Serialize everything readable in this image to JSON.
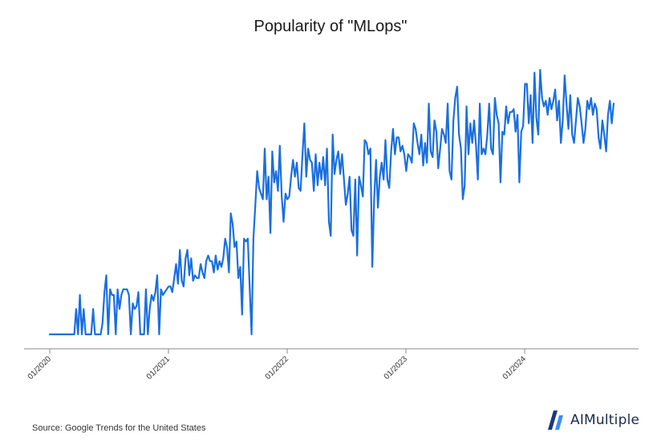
{
  "source_note": "Source: Google Trends for the United States",
  "brand": {
    "name": "AIMultiple",
    "logo_icon": "aimultiple-logo-icon"
  },
  "colors": {
    "line": "#1a6fe0",
    "axis": "#888888",
    "logo_dark": "#1b3a7a",
    "logo_light": "#3b8cf5"
  },
  "chart_data": {
    "type": "line",
    "title": "Popularity of \"MLops\"",
    "xlabel": "",
    "ylabel": "",
    "x_tick_labels": [
      "01/2020",
      "01/2021",
      "01/2022",
      "01/2023",
      "01/2024"
    ],
    "x_tick_positions": [
      0,
      1,
      2,
      3,
      4
    ],
    "x_range": [
      0,
      4.75
    ],
    "ylim": [
      0,
      100
    ],
    "grid": false,
    "series": [
      {
        "values": [
          0,
          0,
          0,
          0,
          0,
          0,
          0,
          0,
          0,
          0,
          0,
          0,
          0,
          0,
          9,
          0,
          14,
          0,
          9,
          0,
          0,
          0,
          0,
          9,
          0,
          0,
          0,
          0,
          4,
          15,
          21,
          0,
          16,
          14,
          14,
          0,
          16,
          9,
          14,
          16,
          16,
          16,
          14,
          0,
          11,
          9,
          10,
          15,
          0,
          0,
          0,
          16,
          0,
          9,
          14,
          12,
          15,
          21,
          0,
          16,
          14,
          15,
          16,
          17,
          17,
          15,
          20,
          25,
          18,
          30,
          19,
          17,
          27,
          30,
          21,
          27,
          19,
          21,
          20,
          20,
          25,
          22,
          20,
          26,
          28,
          26,
          26,
          22,
          28,
          23,
          26,
          24,
          27,
          34,
          31,
          22,
          43,
          39,
          31,
          33,
          20,
          24,
          7,
          34,
          33,
          34,
          17,
          0,
          34,
          46,
          58,
          52,
          50,
          48,
          66,
          48,
          56,
          36,
          65,
          54,
          58,
          51,
          67,
          49,
          40,
          50,
          48,
          49,
          56,
          62,
          56,
          61,
          52,
          51,
          64,
          75,
          56,
          66,
          62,
          61,
          51,
          64,
          53,
          61,
          55,
          63,
          53,
          66,
          40,
          35,
          71,
          57,
          62,
          65,
          57,
          64,
          55,
          46,
          50,
          56,
          37,
          35,
          55,
          28,
          56,
          53,
          49,
          69,
          68,
          64,
          66,
          24,
          48,
          62,
          45,
          56,
          61,
          55,
          69,
          55,
          52,
          65,
          73,
          64,
          70,
          70,
          65,
          67,
          64,
          58,
          64,
          63,
          61,
          75,
          73,
          68,
          64,
          71,
          60,
          68,
          61,
          82,
          65,
          63,
          76,
          72,
          59,
          66,
          73,
          71,
          68,
          82,
          58,
          55,
          76,
          84,
          88,
          71,
          66,
          48,
          53,
          81,
          64,
          75,
          68,
          76,
          67,
          55,
          82,
          64,
          66,
          64,
          71,
          82,
          66,
          64,
          84,
          78,
          75,
          54,
          72,
          71,
          81,
          75,
          79,
          79,
          80,
          72,
          78,
          54,
          72,
          74,
          89,
          89,
          75,
          85,
          68,
          93,
          77,
          71,
          94,
          84,
          81,
          83,
          78,
          84,
          80,
          83,
          87,
          76,
          83,
          68,
          76,
          92,
          82,
          73,
          85,
          71,
          68,
          76,
          84,
          81,
          75,
          68,
          73,
          83,
          80,
          84,
          78,
          82,
          80,
          70,
          66,
          76,
          71,
          65,
          78,
          83,
          75,
          82
        ]
      }
    ]
  }
}
